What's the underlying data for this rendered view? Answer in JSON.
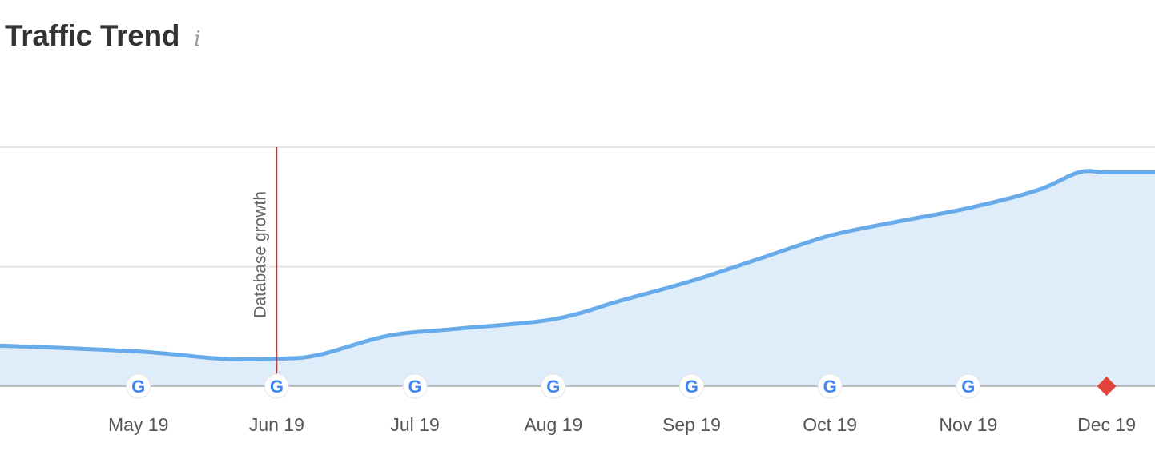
{
  "header": {
    "title": "Traffic Trend",
    "info_icon": "info-icon",
    "info_glyph": "i"
  },
  "chart_data": {
    "type": "area",
    "title": "Traffic Trend",
    "xlabel": "",
    "ylabel": "",
    "categories": [
      "May 19",
      "Jun 19",
      "Jul 19",
      "Aug 19",
      "Sep 19",
      "Oct 19",
      "Nov 19",
      "Dec 19"
    ],
    "x_months": [
      4.0,
      5.0,
      6.0,
      7.0,
      8.0,
      9.0,
      10.0,
      11.0
    ],
    "series": [
      {
        "x": [
          3.0,
          4.0,
          4.6,
          5.0,
          5.3,
          5.8,
          6.3,
          7.0,
          7.5,
          8.0,
          8.5,
          9.0,
          9.5,
          10.0,
          10.5,
          10.8,
          11.0,
          11.35
        ],
        "values": [
          0.34,
          0.29,
          0.23,
          0.23,
          0.26,
          0.42,
          0.48,
          0.56,
          0.72,
          0.88,
          1.07,
          1.26,
          1.38,
          1.49,
          1.64,
          1.79,
          1.79,
          1.79
        ]
      }
    ],
    "ylim": [
      0,
      2
    ],
    "xlim": [
      3.0,
      11.35
    ],
    "grid": true,
    "line_color": "#68abea",
    "fill_color": "#dfecfa",
    "grid_color": "#dddddd",
    "axis_color": "#aaaaaa",
    "event_markers": [
      {
        "type": "google",
        "x": 4.0,
        "icon": "google-icon"
      },
      {
        "type": "google",
        "x": 5.0,
        "icon": "google-icon"
      },
      {
        "type": "google",
        "x": 6.0,
        "icon": "google-icon"
      },
      {
        "type": "google",
        "x": 7.0,
        "icon": "google-icon"
      },
      {
        "type": "google",
        "x": 8.0,
        "icon": "google-icon"
      },
      {
        "type": "google",
        "x": 9.0,
        "icon": "google-icon"
      },
      {
        "type": "google",
        "x": 10.0,
        "icon": "google-icon"
      },
      {
        "type": "diamond",
        "x": 11.0,
        "icon": "red-diamond-icon",
        "color": "#e2443b"
      }
    ],
    "annotation": {
      "label": "Database growth",
      "x": 5.0,
      "color": "#d83333"
    }
  }
}
